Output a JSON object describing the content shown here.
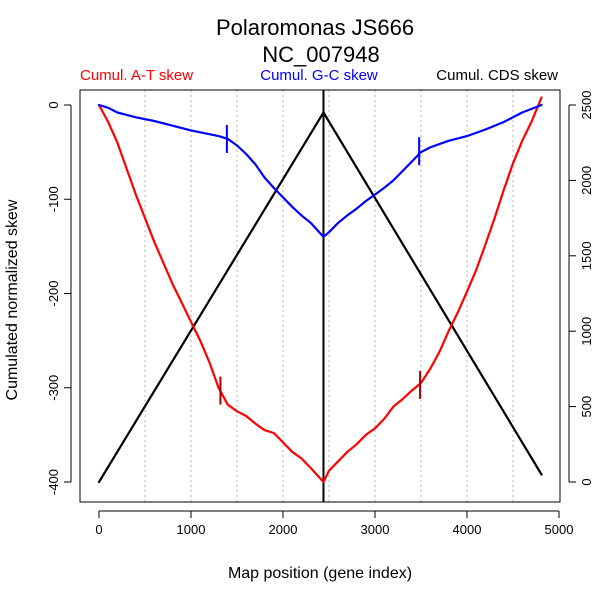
{
  "chart_data": {
    "type": "line",
    "title": "Polaromonas JS666",
    "subtitle": "NC_007948",
    "xlabel": "Map position (gene index)",
    "ylabel": "Cumulated normalized skew",
    "xlim": [
      0,
      5000
    ],
    "ylim_left": [
      -400,
      0
    ],
    "ylim_right": [
      0,
      2500
    ],
    "x_ticks": [
      0,
      1000,
      2000,
      3000,
      4000,
      5000
    ],
    "y_ticks_left": [
      0,
      -100,
      -200,
      -300,
      -400
    ],
    "y_ticks_right": [
      0,
      500,
      1000,
      1500,
      2000,
      2500
    ],
    "vertical_gridlines": [
      500,
      1000,
      1500,
      2000,
      2500,
      3000,
      3500,
      4000,
      4500
    ],
    "origin_line_x": 2440,
    "legend": [
      {
        "label": "Cumul. A-T skew",
        "color": "#ff0000"
      },
      {
        "label": "Cumul. G-C skew",
        "color": "#0000ff"
      },
      {
        "label": "Cumul. CDS skew",
        "color": "#000000"
      }
    ],
    "series": [
      {
        "name": "Cumul. A-T skew",
        "axis": "left",
        "color": "#ff0000",
        "x": [
          0,
          100,
          200,
          400,
          600,
          800,
          900,
          1000,
          1100,
          1200,
          1300,
          1400,
          1500,
          1600,
          1700,
          1800,
          1900,
          2000,
          2100,
          2200,
          2300,
          2440,
          2500,
          2600,
          2700,
          2800,
          2900,
          3000,
          3100,
          3200,
          3300,
          3400,
          3500,
          3600,
          3700,
          3800,
          3900,
          4000,
          4100,
          4200,
          4300,
          4400,
          4500,
          4600,
          4700,
          4810
        ],
        "values": [
          0,
          -18,
          -40,
          -95,
          -145,
          -190,
          -210,
          -230,
          -250,
          -273,
          -300,
          -318,
          -325,
          -330,
          -338,
          -345,
          -348,
          -358,
          -368,
          -375,
          -385,
          -400,
          -388,
          -378,
          -368,
          -360,
          -350,
          -343,
          -333,
          -320,
          -312,
          -303,
          -295,
          -280,
          -262,
          -240,
          -220,
          -198,
          -175,
          -148,
          -120,
          -90,
          -62,
          -38,
          -18,
          8
        ]
      },
      {
        "name": "Cumul. G-C skew",
        "axis": "left",
        "color": "#0000ff",
        "x": [
          0,
          100,
          200,
          400,
          600,
          800,
          1000,
          1200,
          1300,
          1400,
          1500,
          1600,
          1700,
          1800,
          1900,
          2000,
          2100,
          2200,
          2300,
          2440,
          2500,
          2600,
          2700,
          2800,
          2900,
          3000,
          3100,
          3200,
          3300,
          3400,
          3500,
          3600,
          3800,
          4000,
          4200,
          4400,
          4600,
          4810
        ],
        "values": [
          0,
          -3,
          -8,
          -13,
          -17,
          -22,
          -27,
          -31,
          -33,
          -36,
          -43,
          -52,
          -63,
          -77,
          -88,
          -98,
          -108,
          -117,
          -125,
          -140,
          -135,
          -125,
          -117,
          -110,
          -102,
          -95,
          -88,
          -80,
          -70,
          -60,
          -50,
          -45,
          -38,
          -33,
          -26,
          -18,
          -8,
          0
        ]
      },
      {
        "name": "Cumul. CDS skew",
        "axis": "right",
        "color": "#000000",
        "x": [
          0,
          2440,
          4810
        ],
        "values": [
          0,
          2450,
          50
        ]
      }
    ],
    "markers": [
      {
        "series": "Cumul. A-T skew",
        "x": 1320,
        "value": -303
      },
      {
        "series": "Cumul. A-T skew",
        "x": 3490,
        "value": -297
      },
      {
        "series": "Cumul. G-C skew",
        "x": 1390,
        "value": -36
      },
      {
        "series": "Cumul. G-C skew",
        "x": 3480,
        "value": -49
      }
    ]
  }
}
